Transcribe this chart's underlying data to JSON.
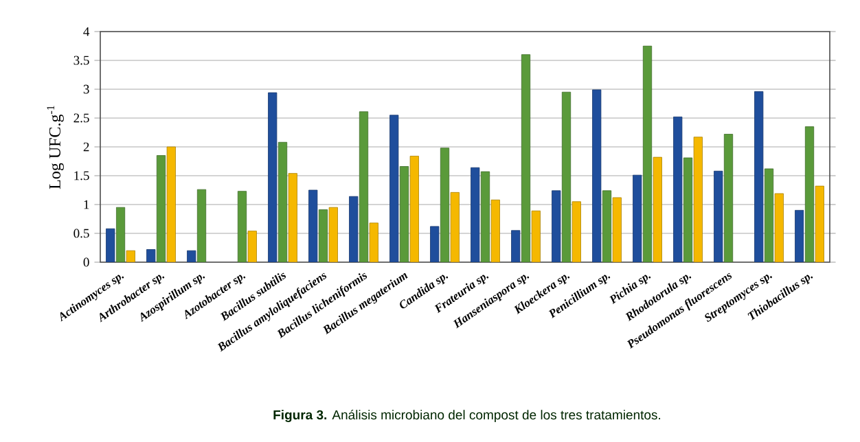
{
  "chart_data": {
    "type": "bar",
    "ylabel": "Log UFC.g$^{-1}$",
    "categories": [
      "Actinomyces sp.",
      "Arthrobacter sp.",
      "Azospirillum sp.",
      "Azotobacter sp.",
      "Bacillus subtilis",
      "Bacillus amyloliquefaciens",
      "Bacillus licheniformis",
      "Bacillus megaterium",
      "Candida sp.",
      "Frateuria sp.",
      "Hanseniaspora sp.",
      "Kloeckera sp.",
      "Penicillium sp.",
      "Pichia sp.",
      "Rhodotorula sp.",
      "Pseudomonas fluorescens",
      "Streptomyces sp.",
      "Thiobacillus sp."
    ],
    "series": [
      {
        "color": "#1f4e9c",
        "values": [
          0.58,
          0.22,
          0.2,
          null,
          2.94,
          1.25,
          1.14,
          2.55,
          0.62,
          1.64,
          0.55,
          1.24,
          2.99,
          1.51,
          2.52,
          1.58,
          2.96,
          0.9
        ]
      },
      {
        "color": "#5a9a3a",
        "values": [
          0.95,
          1.85,
          1.26,
          1.23,
          2.08,
          0.91,
          2.61,
          1.66,
          1.98,
          1.57,
          3.6,
          2.95,
          1.24,
          3.75,
          1.81,
          2.22,
          1.62,
          2.35
        ]
      },
      {
        "color": "#f5b800",
        "values": [
          0.2,
          2.0,
          null,
          0.54,
          1.54,
          0.95,
          0.68,
          1.84,
          1.21,
          1.08,
          0.89,
          1.05,
          1.12,
          1.82,
          2.17,
          null,
          1.19,
          1.32
        ]
      }
    ],
    "ylim": [
      0,
      4
    ],
    "yticks": [
      0,
      0.5,
      1,
      1.5,
      2,
      2.5,
      3,
      3.5,
      4
    ],
    "grid": "y",
    "annotations": [
      "**Figura 3.** Análisis microbiano del compost de los tres tratamientos."
    ]
  }
}
